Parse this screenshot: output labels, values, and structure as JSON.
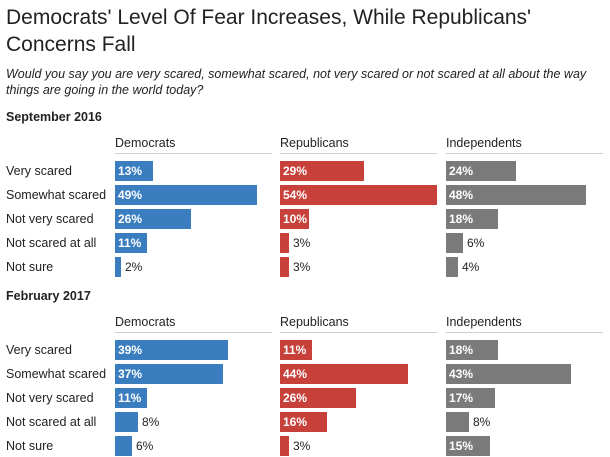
{
  "title": "Democrats' Level Of Fear Increases, While Republicans' Concerns Fall",
  "subtitle": "Would you say you are very scared, somewhat scared, not very scared or not scared at all about the way things are going in the world today?",
  "colors": {
    "Democrats": "#3a7ebf",
    "Republicans": "#c8403a",
    "Independents": "#7a7a7a"
  },
  "chart_data": [
    {
      "type": "bar",
      "panel_label": "September 2016",
      "categories": [
        "Very scared",
        "Somewhat scared",
        "Not very scared",
        "Not scared at all",
        "Not sure"
      ],
      "series": [
        {
          "name": "Democrats",
          "values": [
            13,
            49,
            26,
            11,
            2
          ]
        },
        {
          "name": "Republicans",
          "values": [
            29,
            54,
            10,
            3,
            3
          ]
        },
        {
          "name": "Independents",
          "values": [
            24,
            48,
            18,
            6,
            4
          ]
        }
      ],
      "value_suffix": "%",
      "xlim": [
        0,
        54
      ]
    },
    {
      "type": "bar",
      "panel_label": "February 2017",
      "categories": [
        "Very scared",
        "Somewhat scared",
        "Not very scared",
        "Not scared at all",
        "Not sure"
      ],
      "series": [
        {
          "name": "Democrats",
          "values": [
            39,
            37,
            11,
            8,
            6
          ]
        },
        {
          "name": "Republicans",
          "values": [
            11,
            44,
            26,
            16,
            3
          ]
        },
        {
          "name": "Independents",
          "values": [
            18,
            43,
            17,
            8,
            15
          ]
        }
      ],
      "value_suffix": "%",
      "xlim": [
        0,
        54
      ]
    }
  ]
}
